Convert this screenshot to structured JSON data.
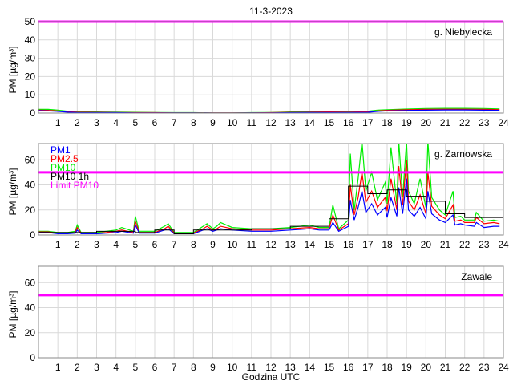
{
  "chart_data": {
    "type": "line",
    "title": "11-3-2023",
    "xlabel": "Godzina UTC",
    "xlim": [
      0,
      24
    ],
    "xticks": [
      1,
      2,
      3,
      4,
      5,
      6,
      7,
      8,
      9,
      10,
      11,
      12,
      13,
      14,
      15,
      16,
      17,
      18,
      19,
      20,
      21,
      22,
      23,
      24
    ],
    "limit_value": 50,
    "colors": {
      "PM1": "#0000ff",
      "PM2.5": "#ff0000",
      "PM10": "#00ee00",
      "PM10 1h": "#000000",
      "Limit PM10": "#ff00ff"
    },
    "panels": [
      {
        "station": "g. Niebylecka",
        "ylabel": "PM [µg/m³]",
        "ylim": [
          0,
          50
        ],
        "yticks": [
          0,
          10,
          20,
          30,
          40,
          50
        ],
        "x": [
          0,
          0.5,
          1,
          1.5,
          2,
          3,
          4,
          5,
          6,
          7,
          8,
          9,
          10,
          11,
          12,
          13,
          14,
          15,
          16,
          17,
          17.5,
          18,
          19,
          20,
          21,
          22,
          23,
          23.8
        ],
        "series": [
          {
            "name": "PM10",
            "values": [
              2,
              2,
              1.6,
              1,
              0.8,
              0.6,
              0.5,
              0.4,
              0.3,
              0.2,
              0.2,
              0.1,
              0.1,
              0.2,
              0.3,
              0.6,
              0.8,
              0.9,
              0.8,
              1,
              1.6,
              1.8,
              2.2,
              2.5,
              2.6,
              2.6,
              2.5,
              2.3
            ]
          },
          {
            "name": "PM2.5",
            "values": [
              1.6,
              1.5,
              1.2,
              0.7,
              0.5,
              0.4,
              0.3,
              0.2,
              0.2,
              0.1,
              0.1,
              0.1,
              0.1,
              0.1,
              0.2,
              0.4,
              0.5,
              0.6,
              0.5,
              0.7,
              1.2,
              1.5,
              1.8,
              2,
              2.1,
              2.1,
              2,
              1.9
            ]
          },
          {
            "name": "PM1",
            "values": [
              1.3,
              1.2,
              0.9,
              0.5,
              0.3,
              0.2,
              0.2,
              0.1,
              0.1,
              0.1,
              0.1,
              0,
              0,
              0.1,
              0.1,
              0.2,
              0.3,
              0.3,
              0.3,
              0.4,
              0.9,
              1.2,
              1.4,
              1.6,
              1.7,
              1.7,
              1.6,
              1.5
            ]
          }
        ],
        "hourly_pm10": []
      },
      {
        "station": "g. Zarnowska",
        "ylabel": "PM [µg/m³]",
        "ylim": [
          0,
          73
        ],
        "yticks": [
          0,
          20,
          40,
          60
        ],
        "legend": [
          "PM1",
          "PM2.5",
          "PM10",
          "PM10 1h",
          "Limit PM10"
        ],
        "x": [
          0,
          0.5,
          1,
          1.5,
          1.9,
          2,
          2.2,
          3,
          3.5,
          4,
          4.3,
          4.9,
          5,
          5.2,
          6,
          6.5,
          6.7,
          7,
          7.5,
          8,
          8.5,
          8.7,
          9,
          9.2,
          9.4,
          10,
          11,
          12,
          13,
          14,
          14.5,
          15,
          15.2,
          15.5,
          16,
          16.1,
          16.3,
          16.5,
          16.7,
          16.9,
          17.2,
          17.5,
          17.9,
          18,
          18.2,
          18.5,
          18.6,
          18.8,
          19,
          19.1,
          19.4,
          19.7,
          20,
          20.1,
          20.3,
          20.7,
          21,
          21.4,
          21.5,
          21.8,
          22,
          22.5,
          22.6,
          23,
          23.5,
          23.8
        ],
        "series": [
          {
            "name": "PM10",
            "values": [
              3,
              3,
              2,
              2,
              3,
              8,
              2,
              2,
              3,
              4,
              6,
              3,
              15,
              3,
              3,
              7,
              9,
              2,
              2,
              2,
              7,
              9,
              5,
              7,
              10,
              6,
              5,
              5,
              6,
              8,
              6,
              6,
              24,
              5,
              12,
              65,
              20,
              45,
              75,
              35,
              50,
              28,
              42,
              25,
              70,
              25,
              75,
              30,
              75,
              35,
              25,
              45,
              22,
              75,
              30,
              20,
              16,
              35,
              14,
              15,
              12,
              12,
              18,
              11,
              12,
              11
            ]
          },
          {
            "name": "PM2.5",
            "values": [
              2.5,
              2.5,
              1.5,
              1.5,
              2,
              6,
              1.5,
              1.5,
              2,
              3,
              4,
              2,
              11,
              2,
              2,
              5,
              7,
              1.5,
              1.5,
              1.5,
              5,
              7,
              4,
              5,
              7,
              5,
              4,
              4,
              5,
              6,
              5,
              5,
              16,
              4,
              9,
              40,
              16,
              30,
              50,
              26,
              35,
              22,
              30,
              19,
              45,
              20,
              55,
              24,
              60,
              27,
              20,
              32,
              17,
              50,
              23,
              16,
              13,
              24,
              11,
              12,
              10,
              10,
              14,
              9,
              10,
              9
            ]
          },
          {
            "name": "PM1",
            "values": [
              2,
              2,
              1,
              1,
              1.5,
              4,
              1,
              1,
              1.5,
              2,
              3,
              1.5,
              8,
              1.5,
              1.5,
              4,
              5,
              1,
              1,
              1,
              4,
              5,
              3,
              4,
              5,
              4,
              3,
              3,
              4,
              5,
              4,
              4,
              10,
              3,
              7,
              28,
              12,
              22,
              35,
              18,
              25,
              16,
              22,
              14,
              30,
              15,
              38,
              17,
              45,
              20,
              15,
              22,
              13,
              35,
              17,
              12,
              10,
              16,
              8,
              9,
              8,
              7,
              10,
              6,
              7,
              7
            ]
          }
        ],
        "hourly_pm10": [
          2,
          2,
          2,
          3,
          3,
          2,
          4,
          1,
          4,
          4,
          4,
          5,
          5,
          7,
          7,
          13,
          39,
          33,
          36,
          31,
          27,
          17,
          14,
          14
        ]
      },
      {
        "station": "Zawale",
        "ylabel": "PM [µg/m³]",
        "ylim": [
          0,
          73
        ],
        "yticks": [
          0,
          20,
          40,
          60
        ],
        "x": [],
        "series": [],
        "hourly_pm10": []
      }
    ]
  }
}
